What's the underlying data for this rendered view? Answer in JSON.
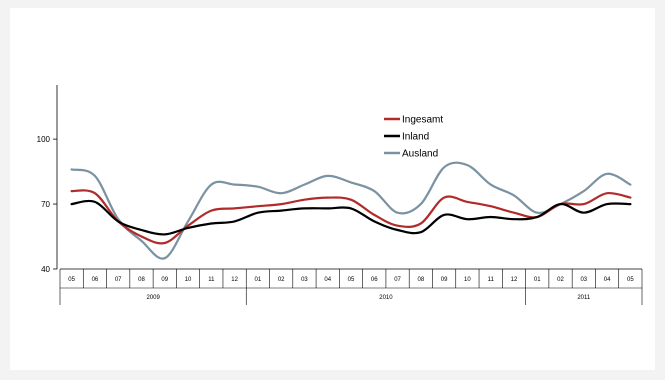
{
  "chart_data": {
    "type": "line",
    "months": [
      "05",
      "06",
      "07",
      "08",
      "09",
      "10",
      "11",
      "12",
      "01",
      "02",
      "03",
      "04",
      "05",
      "06",
      "07",
      "08",
      "09",
      "10",
      "11",
      "12",
      "01",
      "02",
      "03",
      "04",
      "05"
    ],
    "years": [
      {
        "label": "2009",
        "start": 0,
        "end": 8
      },
      {
        "label": "2010",
        "start": 8,
        "end": 20
      },
      {
        "label": "2011",
        "start": 20,
        "end": 25
      }
    ],
    "yticks": [
      40,
      70,
      100
    ],
    "ylim": [
      40,
      125
    ],
    "grid": false,
    "legend_position": "top-center",
    "series": [
      {
        "name": "Ingesamt",
        "color": "#b22b2b",
        "values": [
          76,
          75,
          62,
          55,
          52,
          60,
          67,
          68,
          69,
          70,
          72,
          73,
          72,
          65,
          60,
          61,
          73,
          71,
          69,
          66,
          64,
          70,
          70,
          75,
          73
        ]
      },
      {
        "name": "Inland",
        "color": "#000000",
        "values": [
          70,
          71,
          62,
          58,
          56,
          59,
          61,
          62,
          66,
          67,
          68,
          68,
          68,
          62,
          58,
          57,
          65,
          63,
          64,
          63,
          64,
          70,
          66,
          70,
          70
        ]
      },
      {
        "name": "Ausland",
        "color": "#7a92a2",
        "values": [
          86,
          83,
          63,
          53,
          45,
          62,
          79,
          79,
          78,
          75,
          79,
          83,
          80,
          76,
          66,
          70,
          87,
          88,
          79,
          74,
          66,
          70,
          76,
          84,
          79
        ]
      }
    ]
  }
}
